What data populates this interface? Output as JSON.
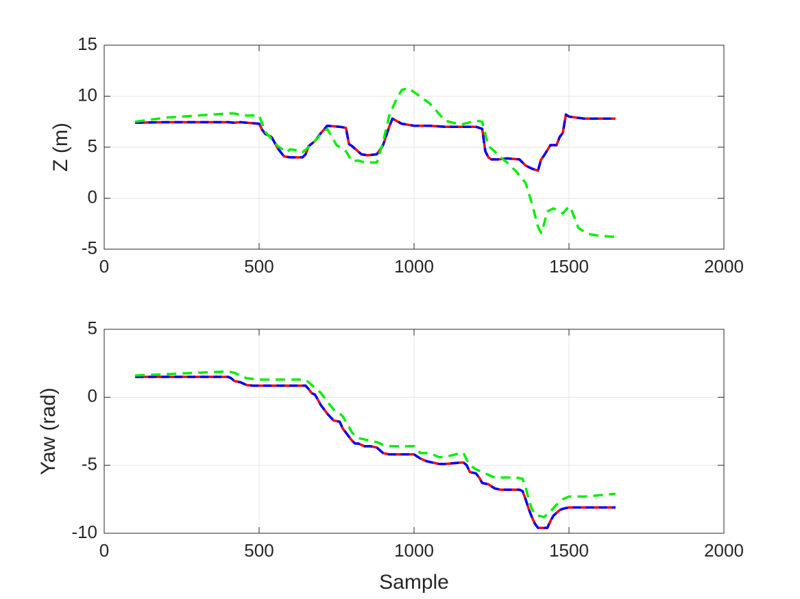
{
  "chart_data": [
    {
      "type": "line",
      "xlabel": "",
      "ylabel": "Z (m)",
      "xlim": [
        0,
        2000
      ],
      "ylim": [
        -5,
        15
      ],
      "xticks": [
        0,
        500,
        1000,
        1500,
        2000
      ],
      "yticks": [
        -5,
        0,
        5,
        10,
        15
      ],
      "xtick_labels": [
        "0",
        "500",
        "1000",
        "1500",
        "2000"
      ],
      "ytick_labels": [
        "-5",
        "0",
        "5",
        "10",
        "15"
      ],
      "grid": true,
      "series": [
        {
          "color": "#ff0000",
          "style": "solid",
          "x": [
            100,
            200,
            300,
            400,
            420,
            440,
            480,
            500,
            510,
            520,
            540,
            560,
            580,
            600,
            620,
            640,
            650,
            660,
            680,
            700,
            720,
            760,
            780,
            790,
            800,
            830,
            850,
            880,
            900,
            920,
            930,
            960,
            1000,
            1050,
            1100,
            1150,
            1200,
            1220,
            1230,
            1240,
            1250,
            1270,
            1300,
            1340,
            1360,
            1380,
            1400,
            1410,
            1420,
            1440,
            1460,
            1470,
            1480,
            1490,
            1500,
            1550,
            1600,
            1650
          ],
          "y": [
            7.4,
            7.45,
            7.45,
            7.45,
            7.4,
            7.45,
            7.35,
            7.3,
            6.7,
            6.3,
            6.0,
            4.9,
            4.1,
            4.0,
            4.0,
            4.0,
            4.3,
            5.1,
            5.6,
            6.4,
            7.1,
            7.0,
            6.9,
            5.3,
            5.1,
            4.3,
            4.2,
            4.3,
            5.2,
            7.0,
            7.8,
            7.3,
            7.1,
            7.1,
            7.0,
            7.0,
            7.0,
            6.8,
            4.6,
            4.0,
            3.8,
            3.8,
            3.9,
            3.8,
            3.2,
            2.9,
            2.7,
            3.8,
            4.2,
            5.2,
            5.2,
            6.0,
            6.4,
            8.2,
            8.0,
            7.8,
            7.8,
            7.8
          ]
        },
        {
          "color": "#0000ff",
          "style": "dashed",
          "x": [
            100,
            200,
            300,
            400,
            420,
            440,
            480,
            500,
            510,
            520,
            540,
            560,
            580,
            600,
            620,
            640,
            650,
            660,
            680,
            700,
            720,
            760,
            780,
            790,
            800,
            830,
            850,
            880,
            900,
            920,
            930,
            960,
            1000,
            1050,
            1100,
            1150,
            1200,
            1220,
            1230,
            1240,
            1250,
            1270,
            1300,
            1340,
            1360,
            1380,
            1400,
            1410,
            1420,
            1440,
            1460,
            1470,
            1480,
            1490,
            1500,
            1550,
            1600,
            1650
          ],
          "y": [
            7.4,
            7.45,
            7.45,
            7.45,
            7.4,
            7.45,
            7.35,
            7.3,
            6.7,
            6.3,
            6.0,
            4.9,
            4.1,
            4.0,
            4.0,
            4.0,
            4.3,
            5.1,
            5.6,
            6.4,
            7.1,
            7.0,
            6.9,
            5.3,
            5.1,
            4.3,
            4.2,
            4.3,
            5.2,
            7.0,
            7.8,
            7.3,
            7.1,
            7.1,
            7.0,
            7.0,
            7.0,
            6.8,
            4.6,
            4.0,
            3.8,
            3.8,
            3.9,
            3.8,
            3.2,
            2.9,
            2.7,
            3.8,
            4.2,
            5.2,
            5.2,
            6.0,
            6.4,
            8.2,
            8.0,
            7.8,
            7.8,
            7.8
          ]
        },
        {
          "color": "#00ee00",
          "style": "dashed",
          "x": [
            100,
            200,
            300,
            400,
            420,
            450,
            480,
            500,
            520,
            540,
            560,
            590,
            600,
            620,
            640,
            660,
            680,
            700,
            720,
            750,
            780,
            800,
            820,
            840,
            860,
            880,
            900,
            920,
            940,
            960,
            980,
            1000,
            1050,
            1100,
            1150,
            1200,
            1220,
            1240,
            1260,
            1280,
            1300,
            1330,
            1360,
            1380,
            1400,
            1410,
            1420,
            1430,
            1450,
            1480,
            1500,
            1510,
            1530,
            1560,
            1600,
            1650
          ],
          "y": [
            7.5,
            7.9,
            8.1,
            8.3,
            8.3,
            8.1,
            8.1,
            8.1,
            6.5,
            5.8,
            5.1,
            4.5,
            4.8,
            4.7,
            4.5,
            5.0,
            5.6,
            6.3,
            6.8,
            5.2,
            4.6,
            3.6,
            3.7,
            3.5,
            3.5,
            3.5,
            5.5,
            8.1,
            9.5,
            10.6,
            10.8,
            10.4,
            9.3,
            7.6,
            7.2,
            7.6,
            7.5,
            5.1,
            4.6,
            4.0,
            3.5,
            2.6,
            1.5,
            -0.5,
            -2.8,
            -3.4,
            -2.5,
            -1.3,
            -1.0,
            -1.5,
            -0.8,
            -1.3,
            -2.9,
            -3.5,
            -3.7,
            -3.8
          ]
        }
      ]
    },
    {
      "type": "line",
      "xlabel": "Sample",
      "ylabel": "Yaw (rad)",
      "xlim": [
        0,
        2000
      ],
      "ylim": [
        -10,
        5
      ],
      "xticks": [
        0,
        500,
        1000,
        1500,
        2000
      ],
      "yticks": [
        -10,
        -5,
        0,
        5
      ],
      "xtick_labels": [
        "0",
        "500",
        "1000",
        "1500",
        "2000"
      ],
      "ytick_labels": [
        "-10",
        "-5",
        "0",
        "5"
      ],
      "grid": true,
      "series": [
        {
          "color": "#ff0000",
          "style": "solid",
          "x": [
            100,
            200,
            300,
            400,
            410,
            420,
            440,
            460,
            480,
            500,
            550,
            600,
            650,
            660,
            670,
            680,
            690,
            700,
            710,
            720,
            740,
            760,
            770,
            790,
            800,
            810,
            820,
            840,
            860,
            880,
            890,
            900,
            920,
            950,
            1000,
            1020,
            1040,
            1060,
            1080,
            1100,
            1150,
            1160,
            1170,
            1180,
            1200,
            1210,
            1220,
            1240,
            1260,
            1280,
            1300,
            1320,
            1340,
            1350,
            1360,
            1370,
            1380,
            1390,
            1400,
            1420,
            1430,
            1440,
            1450,
            1460,
            1470,
            1480,
            1500,
            1550,
            1600,
            1650
          ],
          "y": [
            1.5,
            1.5,
            1.5,
            1.5,
            1.4,
            1.2,
            1.1,
            0.9,
            0.85,
            0.85,
            0.85,
            0.85,
            0.85,
            0.6,
            0.3,
            0.2,
            -0.2,
            -0.6,
            -0.9,
            -1.2,
            -1.7,
            -1.8,
            -2.3,
            -2.9,
            -3.2,
            -3.4,
            -3.4,
            -3.6,
            -3.6,
            -3.7,
            -3.9,
            -4.1,
            -4.2,
            -4.2,
            -4.2,
            -4.5,
            -4.7,
            -4.8,
            -4.9,
            -4.9,
            -4.8,
            -4.8,
            -5.0,
            -5.5,
            -5.6,
            -5.9,
            -6.3,
            -6.4,
            -6.7,
            -6.8,
            -6.8,
            -6.8,
            -6.8,
            -6.9,
            -7.5,
            -8.2,
            -8.8,
            -9.3,
            -9.6,
            -9.6,
            -9.6,
            -9.1,
            -8.7,
            -8.5,
            -8.3,
            -8.2,
            -8.1,
            -8.1,
            -8.1,
            -8.1
          ]
        },
        {
          "color": "#0000ff",
          "style": "dashed",
          "x": [
            100,
            200,
            300,
            400,
            410,
            420,
            440,
            460,
            480,
            500,
            550,
            600,
            650,
            660,
            670,
            680,
            690,
            700,
            710,
            720,
            740,
            760,
            770,
            790,
            800,
            810,
            820,
            840,
            860,
            880,
            890,
            900,
            920,
            950,
            1000,
            1020,
            1040,
            1060,
            1080,
            1100,
            1150,
            1160,
            1170,
            1180,
            1200,
            1210,
            1220,
            1240,
            1260,
            1280,
            1300,
            1320,
            1340,
            1350,
            1360,
            1370,
            1380,
            1390,
            1400,
            1420,
            1430,
            1440,
            1450,
            1460,
            1470,
            1480,
            1500,
            1550,
            1600,
            1650
          ],
          "y": [
            1.5,
            1.5,
            1.5,
            1.5,
            1.4,
            1.2,
            1.1,
            0.9,
            0.85,
            0.85,
            0.85,
            0.85,
            0.85,
            0.6,
            0.3,
            0.2,
            -0.2,
            -0.6,
            -0.9,
            -1.2,
            -1.7,
            -1.8,
            -2.3,
            -2.9,
            -3.2,
            -3.4,
            -3.4,
            -3.6,
            -3.6,
            -3.7,
            -3.9,
            -4.1,
            -4.2,
            -4.2,
            -4.2,
            -4.5,
            -4.7,
            -4.8,
            -4.9,
            -4.9,
            -4.8,
            -4.8,
            -5.0,
            -5.5,
            -5.6,
            -5.9,
            -6.3,
            -6.4,
            -6.7,
            -6.8,
            -6.8,
            -6.8,
            -6.8,
            -6.9,
            -7.5,
            -8.2,
            -8.8,
            -9.3,
            -9.6,
            -9.6,
            -9.6,
            -9.1,
            -8.7,
            -8.5,
            -8.3,
            -8.2,
            -8.1,
            -8.1,
            -8.1,
            -8.1
          ]
        },
        {
          "color": "#00ee00",
          "style": "dashed",
          "x": [
            100,
            200,
            300,
            400,
            420,
            440,
            460,
            480,
            500,
            550,
            600,
            650,
            660,
            670,
            680,
            700,
            720,
            740,
            760,
            770,
            790,
            800,
            820,
            840,
            860,
            880,
            900,
            920,
            950,
            1000,
            1020,
            1040,
            1060,
            1080,
            1100,
            1150,
            1160,
            1170,
            1180,
            1200,
            1220,
            1240,
            1260,
            1280,
            1300,
            1330,
            1350,
            1360,
            1370,
            1380,
            1390,
            1400,
            1420,
            1440,
            1460,
            1480,
            1500,
            1550,
            1600,
            1650
          ],
          "y": [
            1.6,
            1.7,
            1.8,
            1.9,
            1.8,
            1.6,
            1.4,
            1.35,
            1.3,
            1.3,
            1.3,
            1.3,
            1.1,
            0.9,
            0.7,
            0.3,
            -0.3,
            -0.9,
            -1.2,
            -1.4,
            -2.2,
            -2.6,
            -3.0,
            -3.1,
            -3.2,
            -3.3,
            -3.5,
            -3.6,
            -3.6,
            -3.6,
            -4.1,
            -4.1,
            -4.2,
            -4.4,
            -4.4,
            -4.1,
            -4.1,
            -4.6,
            -5.0,
            -5.3,
            -5.5,
            -5.7,
            -5.9,
            -5.9,
            -5.9,
            -5.9,
            -6.0,
            -6.6,
            -7.5,
            -8.2,
            -8.6,
            -8.7,
            -8.8,
            -8.4,
            -7.9,
            -7.5,
            -7.3,
            -7.3,
            -7.2,
            -7.1
          ]
        }
      ]
    }
  ]
}
